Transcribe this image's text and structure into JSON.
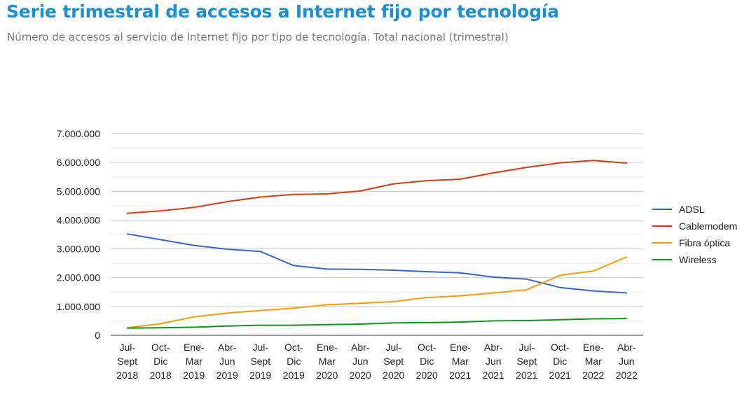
{
  "header": {
    "title": "Serie trimestral de accesos a Internet fijo por tecnología",
    "subtitle": "Número de accesos al servicio de Internet fijo por tipo de tecnología. Total nacional (trimestral)"
  },
  "chart_data": {
    "type": "line",
    "title": "Serie trimestral de accesos a Internet fijo por tecnología",
    "subtitle": "Número de accesos al servicio de Internet fijo por tipo de tecnología. Total nacional (trimestral)",
    "xlabel": "",
    "ylabel": "",
    "ylim": [
      0,
      7000000
    ],
    "yticks": [
      0,
      1000000,
      2000000,
      3000000,
      4000000,
      5000000,
      6000000,
      7000000
    ],
    "ytick_labels": [
      "0",
      "1.000.000",
      "2.000.000",
      "3.000.000",
      "4.000.000",
      "5.000.000",
      "6.000.000",
      "7.000.000"
    ],
    "grid": true,
    "legend_position": "right",
    "categories": [
      [
        "Jul-",
        "Sept",
        "2018"
      ],
      [
        "Oct-",
        "Dic",
        "2018"
      ],
      [
        "Ene-",
        "Mar",
        "2019"
      ],
      [
        "Abr-",
        "Jun",
        "2019"
      ],
      [
        "Jul-",
        "Sept",
        "2019"
      ],
      [
        "Oct-",
        "Dic",
        "2019"
      ],
      [
        "Ene-",
        "Mar",
        "2020"
      ],
      [
        "Abr-",
        "Jun",
        "2020"
      ],
      [
        "Jul-",
        "Sept",
        "2020"
      ],
      [
        "Oct-",
        "Dic",
        "2020"
      ],
      [
        "Ene-",
        "Mar",
        "2021"
      ],
      [
        "Abr-",
        "Jun",
        "2021"
      ],
      [
        "Jul-",
        "Sept",
        "2021"
      ],
      [
        "Oct-",
        "Dic",
        "2021"
      ],
      [
        "Ene-",
        "Mar",
        "2022"
      ],
      [
        "Abr-",
        "Jun",
        "2022"
      ]
    ],
    "series": [
      {
        "name": "ADSL",
        "color": "#3366cc",
        "values": [
          3520000,
          3320000,
          3120000,
          2990000,
          2910000,
          2420000,
          2300000,
          2290000,
          2260000,
          2210000,
          2170000,
          2020000,
          1950000,
          1660000,
          1540000,
          1470000
        ]
      },
      {
        "name": "Cablemodem",
        "color": "#dc3912",
        "values": [
          4240000,
          4320000,
          4440000,
          4640000,
          4800000,
          4890000,
          4910000,
          5010000,
          5260000,
          5370000,
          5420000,
          5640000,
          5830000,
          5990000,
          6070000,
          5980000
        ]
      },
      {
        "name": "Fibra óptica",
        "color": "#ff9900",
        "values": [
          260000,
          400000,
          640000,
          770000,
          860000,
          940000,
          1060000,
          1110000,
          1170000,
          1310000,
          1370000,
          1470000,
          1580000,
          2080000,
          2230000,
          2720000
        ]
      },
      {
        "name": "Wireless",
        "color": "#109618",
        "values": [
          250000,
          260000,
          280000,
          320000,
          350000,
          350000,
          370000,
          390000,
          430000,
          440000,
          460000,
          500000,
          510000,
          540000,
          570000,
          580000
        ]
      }
    ]
  }
}
